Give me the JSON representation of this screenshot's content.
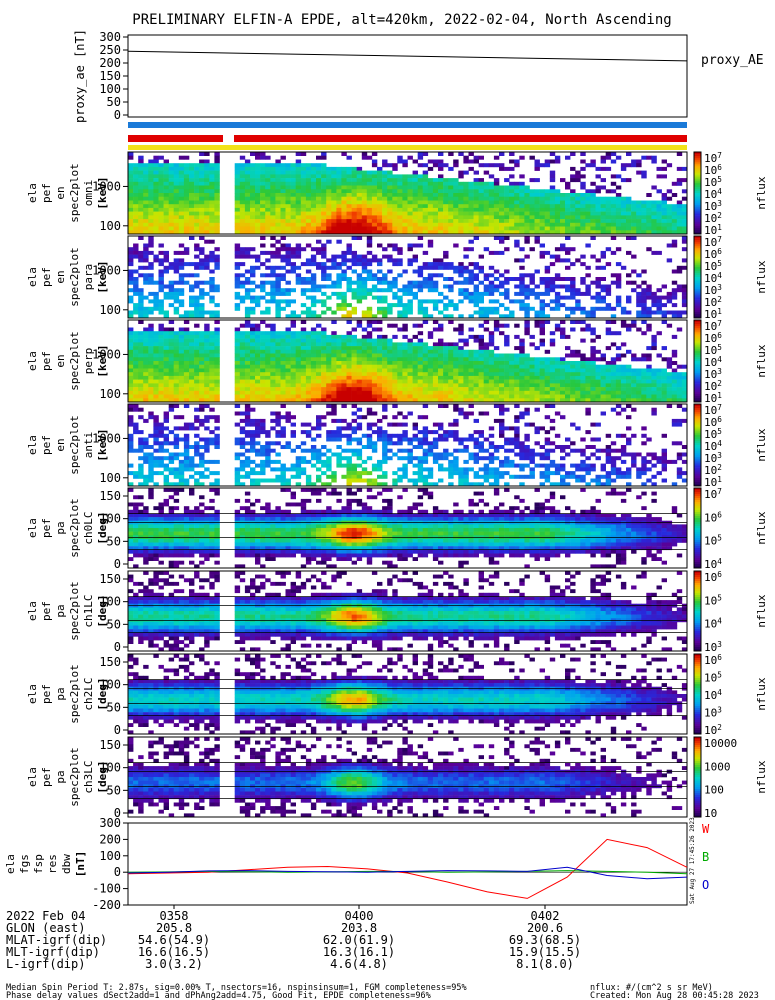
{
  "title": "PRELIMINARY ELFIN-A EPDE, alt=420km, 2022-02-04, North Ascending",
  "colors": {
    "axis": "#000000",
    "bar_blue": "#1a7ad8",
    "bar_red": "#e00000",
    "bar_yellow": "#f2e21a",
    "comp_w": "#ff0000",
    "comp_b": "#00aa00",
    "comp_o": "#0000cc"
  },
  "chart_data": [
    {
      "type": "line",
      "ylabel": "proxy_ae [nT]",
      "yticks": [
        "300",
        "250",
        "200",
        "150",
        "100",
        "50",
        "0"
      ],
      "ylim": [
        0,
        300
      ],
      "series": [
        {
          "name": "proxy_AE",
          "x": [
            "03:57",
            "04:03"
          ],
          "values": [
            245,
            208
          ]
        }
      ]
    },
    {
      "type": "heatmap",
      "ylabel": [
        "ela",
        "pef",
        "en",
        "spec2plot",
        "omni",
        "[keV]"
      ],
      "yticks": [
        "1000",
        "100"
      ],
      "log": true,
      "colorbar": {
        "label": "nflux",
        "ticks": [
          "10^7",
          "10^6",
          "10^5",
          "10^4",
          "10^3",
          "10^2",
          "10^1"
        ]
      }
    },
    {
      "type": "heatmap",
      "ylabel": [
        "ela",
        "pef",
        "en",
        "spec2plot",
        "para",
        "[keV]"
      ],
      "yticks": [
        "1000",
        "100"
      ],
      "log": true,
      "colorbar": {
        "label": "nflux",
        "ticks": [
          "10^7",
          "10^6",
          "10^5",
          "10^4",
          "10^3",
          "10^2",
          "10^1"
        ]
      }
    },
    {
      "type": "heatmap",
      "ylabel": [
        "ela",
        "pef",
        "en",
        "spec2plot",
        "perp",
        "[keV]"
      ],
      "yticks": [
        "1000",
        "100"
      ],
      "log": true,
      "colorbar": {
        "label": "nflux",
        "ticks": [
          "10^7",
          "10^6",
          "10^5",
          "10^4",
          "10^3",
          "10^2",
          "10^1"
        ]
      }
    },
    {
      "type": "heatmap",
      "ylabel": [
        "ela",
        "pef",
        "en",
        "spec2plot",
        "anti",
        "[keV]"
      ],
      "yticks": [
        "1000",
        "100"
      ],
      "log": true,
      "colorbar": {
        "label": "nflux",
        "ticks": [
          "10^7",
          "10^6",
          "10^5",
          "10^4",
          "10^3",
          "10^2",
          "10^1"
        ]
      }
    },
    {
      "type": "heatmap",
      "ylabel": [
        "ela",
        "pef",
        "pa",
        "spec2plot",
        "ch0LC",
        "[deg]"
      ],
      "yticks": [
        "150",
        "100",
        "50",
        "0"
      ],
      "log": false,
      "colorbar": {
        "label": "nflux",
        "ticks": [
          "10^7",
          "10^6",
          "10^5",
          "10^4"
        ]
      }
    },
    {
      "type": "heatmap",
      "ylabel": [
        "ela",
        "pef",
        "pa",
        "spec2plot",
        "ch1LC",
        "[deg]"
      ],
      "yticks": [
        "150",
        "100",
        "50",
        "0"
      ],
      "log": false,
      "colorbar": {
        "label": "nflux",
        "ticks": [
          "10^6",
          "10^5",
          "10^4",
          "10^3"
        ]
      }
    },
    {
      "type": "heatmap",
      "ylabel": [
        "ela",
        "pef",
        "pa",
        "spec2plot",
        "ch2LC",
        "[deg]"
      ],
      "yticks": [
        "150",
        "100",
        "50",
        "0"
      ],
      "log": false,
      "colorbar": {
        "label": "nflux",
        "ticks": [
          "10^6",
          "10^5",
          "10^4",
          "10^3",
          "10^2"
        ]
      }
    },
    {
      "type": "heatmap",
      "ylabel": [
        "ela",
        "pef",
        "pa",
        "spec2plot",
        "ch3LC",
        "[deg]"
      ],
      "yticks": [
        "150",
        "100",
        "50",
        "0"
      ],
      "log": false,
      "colorbar": {
        "label": "nflux",
        "ticks": [
          "10000",
          "1000",
          "100",
          "10"
        ]
      }
    },
    {
      "type": "line",
      "ylabel": [
        "ela",
        "fgs",
        "fsp",
        "res",
        "dbw",
        "[nT]"
      ],
      "yticks": [
        "300",
        "200",
        "100",
        "0",
        "-100",
        "-200"
      ],
      "ylim": [
        -200,
        300
      ],
      "series": [
        {
          "name": "W",
          "values": [
            -10,
            -5,
            0,
            15,
            30,
            35,
            20,
            -5,
            -60,
            -120,
            -160,
            -30,
            200,
            150,
            30
          ]
        },
        {
          "name": "B",
          "values": [
            0,
            2,
            5,
            3,
            0,
            2,
            5,
            4,
            0,
            2,
            5,
            10,
            5,
            0,
            -10
          ]
        },
        {
          "name": "O",
          "values": [
            -5,
            0,
            8,
            10,
            5,
            3,
            0,
            5,
            10,
            8,
            5,
            30,
            -20,
            -40,
            -30
          ]
        }
      ]
    }
  ],
  "x_axis": {
    "rows": [
      {
        "label": "2022 Feb 04",
        "values": [
          "0358",
          "0400",
          "0402"
        ]
      },
      {
        "label": "GLON (east)",
        "values": [
          "205.8",
          "203.8",
          "200.6"
        ]
      },
      {
        "label": "MLAT-igrf(dip)",
        "values": [
          "54.6(54.9)",
          "62.0(61.9)",
          "69.3(68.5)"
        ]
      },
      {
        "label": "MLT-igrf(dip)",
        "values": [
          "16.6(16.5)",
          "16.3(16.1)",
          "15.9(15.5)"
        ]
      },
      {
        "label": "L-igrf(dip)",
        "values": [
          "3.0(3.2)",
          "4.6(4.8)",
          "8.1(8.0)"
        ]
      }
    ]
  },
  "footer": {
    "line1": "Median Spin Period T: 2.87s, sig=0.00% T, nsectors=16, nspinsinsum=1, FGM completeness=95%",
    "line2": "Phase delay values dSect2add=1 and dPhAng2add=4.75, Good Fit, EPDE completeness=96%",
    "units": "nflux: #/(cm^2 s sr MeV)",
    "created": "Created: Mon Aug 28 00:45:28 2023"
  },
  "side_labels": {
    "proxy": "proxy_AE",
    "w": "W",
    "b": "B",
    "o": "O",
    "rotated": "Sat Aug 27 17:45:26 2023"
  }
}
